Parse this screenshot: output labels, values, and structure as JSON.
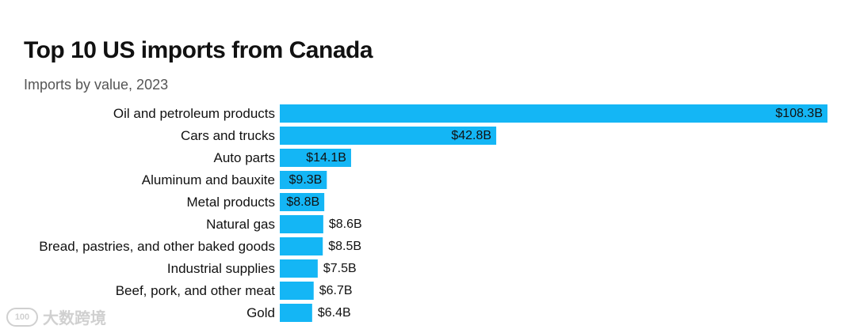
{
  "header": {
    "title": "Top 10 US imports from Canada",
    "subtitle": "Imports by value, 2023"
  },
  "colors": {
    "bar": "#14b6f5",
    "label": "#111111"
  },
  "watermark": {
    "logo_text": "100",
    "text": "大数跨境"
  },
  "chart_data": {
    "type": "bar",
    "orientation": "horizontal",
    "title": "Top 10 US imports from Canada",
    "subtitle": "Imports by value, 2023",
    "categories": [
      "Oil and petroleum products",
      "Cars and trucks",
      "Auto parts",
      "Aluminum and bauxite",
      "Metal products",
      "Natural gas",
      "Bread, pastries, and other baked goods",
      "Industrial supplies",
      "Beef, pork, and other meat",
      "Gold"
    ],
    "values": [
      108.3,
      42.8,
      14.1,
      9.3,
      8.8,
      8.6,
      8.5,
      7.5,
      6.7,
      6.4
    ],
    "value_labels": [
      "$108.3B",
      "$42.8B",
      "$14.1B",
      "$9.3B",
      "$8.8B",
      "$8.6B",
      "$8.5B",
      "$7.5B",
      "$6.7B",
      "$6.4B"
    ],
    "unit": "billion USD",
    "xlabel": "",
    "ylabel": "",
    "xlim": [
      0,
      108.3
    ],
    "grid": false
  }
}
